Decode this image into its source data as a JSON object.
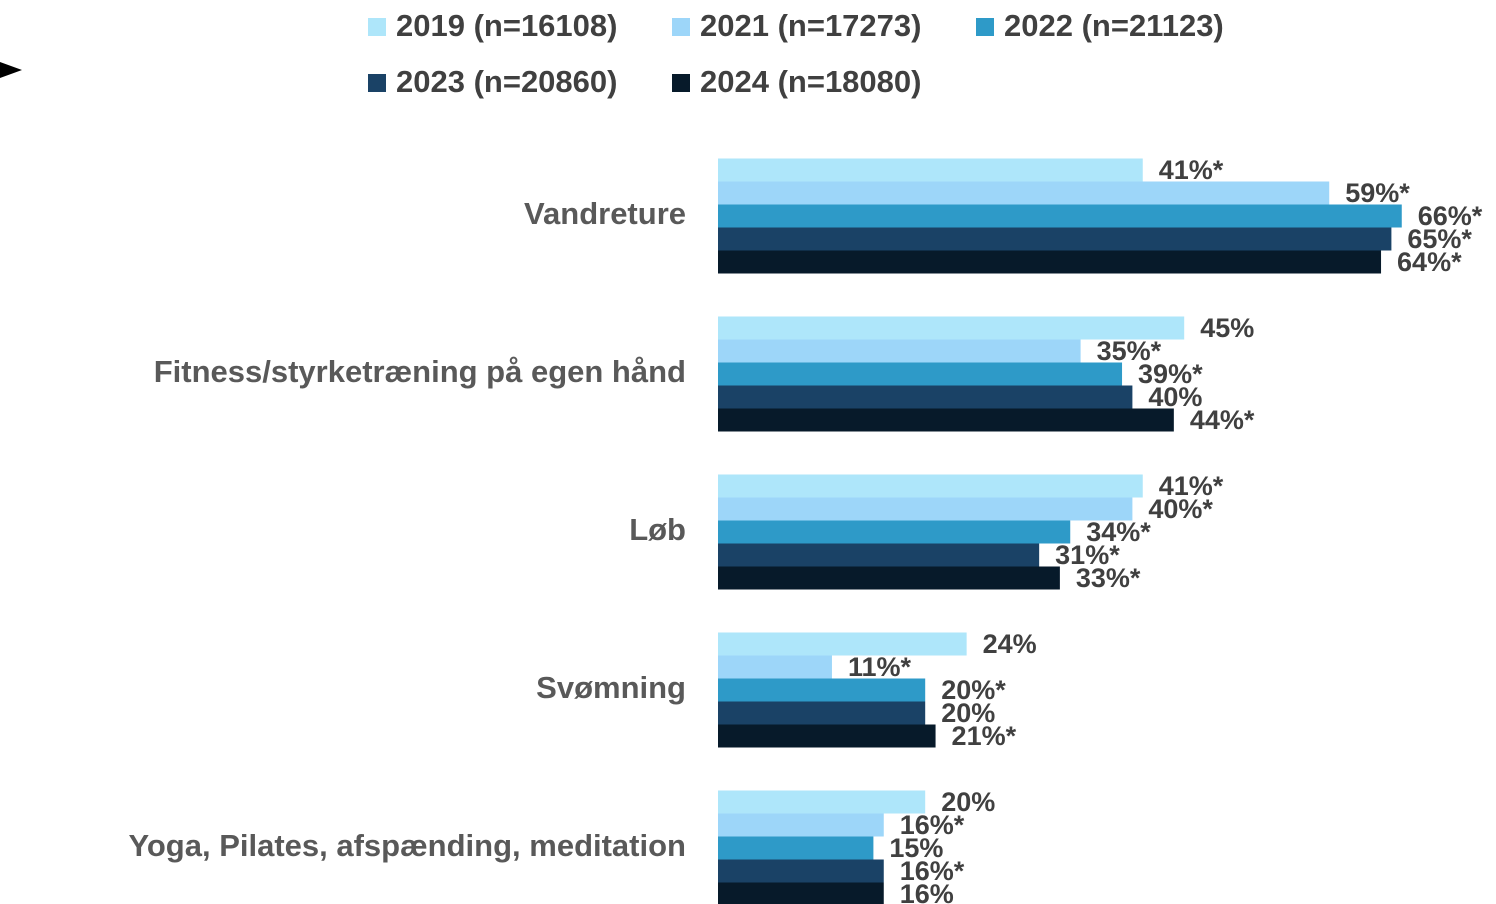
{
  "chart_data": {
    "type": "bar",
    "orientation": "horizontal",
    "categories": [
      "Vandreture",
      "Fitness/styrketræning på egen hånd",
      "Løb",
      "Svømning",
      "Yoga, Pilates, afspænding, meditation"
    ],
    "series": [
      {
        "name": "2019 (n=16108)",
        "color": "#aee6fa",
        "values": [
          41,
          45,
          41,
          24,
          20
        ],
        "value_labels": [
          "41%*",
          "45%",
          "41%*",
          "24%",
          "20%"
        ]
      },
      {
        "name": "2021 (n=17273)",
        "color": "#9dd6f9",
        "values": [
          59,
          35,
          40,
          11,
          16
        ],
        "value_labels": [
          "59%*",
          "35%*",
          "40%*",
          "11%*",
          "16%*"
        ]
      },
      {
        "name": "2022 (n=21123)",
        "color": "#2e9ac8",
        "values": [
          66,
          39,
          34,
          20,
          15
        ],
        "value_labels": [
          "66%*",
          "39%*",
          "34%*",
          "20%*",
          "15%"
        ]
      },
      {
        "name": "2023 (n=20860)",
        "color": "#1a4266",
        "values": [
          65,
          40,
          31,
          20,
          16
        ],
        "value_labels": [
          "65%*",
          "40%",
          "31%*",
          "20%",
          "16%*"
        ]
      },
      {
        "name": "2024 (n=18080)",
        "color": "#071a2a",
        "values": [
          64,
          44,
          33,
          21,
          16
        ],
        "value_labels": [
          "64%*",
          "44%*",
          "33%*",
          "21%*",
          "16%"
        ]
      }
    ]
  }
}
